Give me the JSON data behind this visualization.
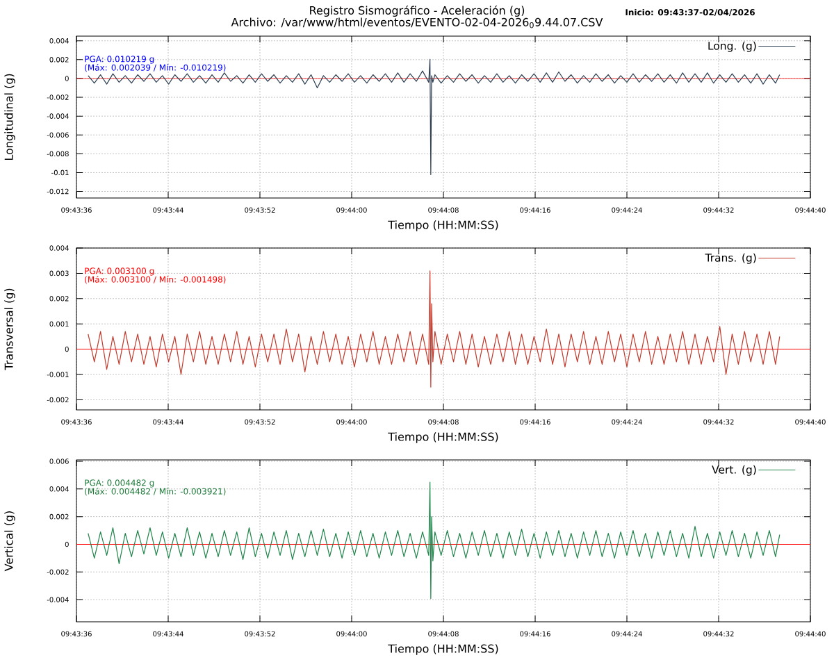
{
  "chart_data": [
    {
      "type": "line",
      "title": "Registro Sismográfico - Aceleración (g)",
      "subtitle": "Archivo: /var/www/html/eventos/EVENTO-02-04-2026$_{0}$9.44.07.CSV",
      "xlabel": "Tiempo (HH:MM:SS)",
      "ylabel": "Longitudinal (g)",
      "x": [
        9.72695,
        9.7271,
        9.72725,
        9.7274,
        9.72755,
        9.7277,
        9.72785,
        9.728,
        9.72815,
        9.7283,
        9.72845,
        9.7286,
        9.72875,
        9.7289,
        9.72905,
        9.7292,
        9.72935,
        9.7295,
        9.72965,
        9.7298,
        9.72995,
        9.7301,
        9.73025,
        9.7304,
        9.73055,
        9.7307,
        9.73085,
        9.731,
        9.73115,
        9.7313,
        9.73145,
        9.7316,
        9.73175,
        9.7319,
        9.73205,
        9.7322,
        9.73235,
        9.7325,
        9.73265,
        9.7328,
        9.73295,
        9.7331,
        9.73325,
        9.7334,
        9.73355,
        9.7337,
        9.73385,
        9.734,
        9.73415,
        9.7343,
        9.73445,
        9.7346,
        9.73475,
        9.7349,
        9.73505,
        9.7352,
        9.73523,
        9.73525,
        9.73527,
        9.7353,
        9.73535,
        9.7355,
        9.73565,
        9.7358,
        9.73595,
        9.7361,
        9.73625,
        9.7364,
        9.73655,
        9.7367,
        9.73685,
        9.737,
        9.73715,
        9.7373,
        9.73745,
        9.7376,
        9.73775,
        9.7379,
        9.73805,
        9.7382,
        9.73835,
        9.7385,
        9.73865,
        9.7388,
        9.73895,
        9.7391,
        9.73925,
        9.7394,
        9.73955,
        9.7397,
        9.73985,
        9.74,
        9.74015,
        9.7403,
        9.74045,
        9.7406,
        9.74075,
        9.7409,
        9.74105,
        9.7412,
        9.74135,
        9.7415,
        9.74165,
        9.7418,
        9.74195,
        9.7421,
        9.74225,
        9.7424,
        9.74255,
        9.7427,
        9.74285,
        9.743,
        9.74315,
        9.7433,
        9.74345,
        9.7436,
        9.7437
      ],
      "xlim": [
        9.726667,
        9.744444
      ],
      "xticks": [
        {
          "value": 9.726667,
          "label": "09:43:36"
        },
        {
          "value": 9.728889,
          "label": "09:43:44"
        },
        {
          "value": 9.731111,
          "label": "09:43:52"
        },
        {
          "value": 9.733333,
          "label": "09:44:00"
        },
        {
          "value": 9.735556,
          "label": "09:44:08"
        },
        {
          "value": 9.737778,
          "label": "09:44:16"
        },
        {
          "value": 9.74,
          "label": "09:44:24"
        },
        {
          "value": 9.742222,
          "label": "09:44:32"
        },
        {
          "value": 9.744444,
          "label": "09:44:40"
        }
      ],
      "ylim": [
        -0.0127,
        0.0045
      ],
      "yticks": [
        -0.012,
        -0.01,
        -0.008,
        -0.006,
        -0.004,
        -0.002,
        0,
        0.002,
        0.004
      ],
      "series": [
        {
          "name": "Long. (g)",
          "color": "#2c3e50",
          "values": [
            0.0003,
            -0.0005,
            0.0004,
            -0.0006,
            0.0005,
            -0.0004,
            0.0003,
            -0.0005,
            0.0004,
            -0.0003,
            0.0005,
            -0.0004,
            0.0003,
            -0.0006,
            0.0004,
            -0.0003,
            0.0005,
            -0.0004,
            0.0003,
            -0.0005,
            0.0004,
            -0.0004,
            0.0006,
            -0.0003,
            0.0003,
            -0.0005,
            0.0004,
            -0.0004,
            0.0005,
            -0.0003,
            0.0004,
            -0.0005,
            0.0003,
            -0.0004,
            0.0005,
            -0.0006,
            0.0004,
            -0.001,
            0.0003,
            -0.0004,
            0.0004,
            -0.0003,
            0.0005,
            -0.0004,
            0.0003,
            -0.0005,
            0.0004,
            -0.0003,
            0.0005,
            -0.0004,
            0.0006,
            -0.0004,
            0.0005,
            -0.0003,
            0.0008,
            -0.0004,
            0.002039,
            -0.010219,
            0.0003,
            -0.0004,
            0.0004,
            -0.0005,
            0.0003,
            -0.0004,
            0.0005,
            -0.0003,
            0.0004,
            -0.0005,
            0.0003,
            -0.0004,
            0.0005,
            -0.0004,
            0.0003,
            -0.0005,
            0.0004,
            -0.0003,
            0.0005,
            -0.0004,
            0.0006,
            -0.0004,
            0.0007,
            -0.0003,
            0.0004,
            -0.0005,
            0.0003,
            -0.0004,
            0.0005,
            -0.0003,
            0.0004,
            -0.0005,
            0.0003,
            -0.0004,
            0.0005,
            -0.0004,
            0.0004,
            -0.0003,
            0.0005,
            -0.0004,
            0.0004,
            -0.0005,
            0.0006,
            -0.0004,
            0.0005,
            -0.0004,
            0.0006,
            -0.0005,
            0.0004,
            -0.0004,
            0.0005,
            -0.0004,
            0.0004,
            -0.0005,
            0.0005,
            -0.0006,
            0.0004,
            -0.0005,
            0.0004
          ]
        }
      ],
      "ref_lines": [
        {
          "axis": "y",
          "value": 0,
          "color": "#ff0000"
        }
      ],
      "annotations": [
        "PGA: 0.010219 g",
        "(Máx: 0.002039 / Mín: -0.010219)",
        "Inicio: 09:43:37-02/04/2026"
      ],
      "grid": true,
      "legend": "top right"
    },
    {
      "type": "line",
      "xlabel": "Tiempo (HH:MM:SS)",
      "ylabel": "Transversal (g)",
      "x": [
        9.72695,
        9.7271,
        9.72725,
        9.7274,
        9.72755,
        9.7277,
        9.72785,
        9.728,
        9.72815,
        9.7283,
        9.72845,
        9.7286,
        9.72875,
        9.7289,
        9.72905,
        9.7292,
        9.72935,
        9.7295,
        9.72965,
        9.7298,
        9.72995,
        9.7301,
        9.73025,
        9.7304,
        9.73055,
        9.7307,
        9.73085,
        9.731,
        9.73115,
        9.7313,
        9.73145,
        9.7316,
        9.73175,
        9.7319,
        9.73205,
        9.7322,
        9.73235,
        9.7325,
        9.73265,
        9.7328,
        9.73295,
        9.7331,
        9.73325,
        9.7334,
        9.73355,
        9.7337,
        9.73385,
        9.734,
        9.73415,
        9.7343,
        9.73445,
        9.7346,
        9.73475,
        9.7349,
        9.73505,
        9.7352,
        9.73523,
        9.73525,
        9.73527,
        9.7353,
        9.73535,
        9.7355,
        9.73565,
        9.7358,
        9.73595,
        9.7361,
        9.73625,
        9.7364,
        9.73655,
        9.7367,
        9.73685,
        9.737,
        9.73715,
        9.7373,
        9.73745,
        9.7376,
        9.73775,
        9.7379,
        9.73805,
        9.7382,
        9.73835,
        9.7385,
        9.73865,
        9.7388,
        9.73895,
        9.7391,
        9.73925,
        9.7394,
        9.73955,
        9.7397,
        9.73985,
        9.74,
        9.74015,
        9.7403,
        9.74045,
        9.7406,
        9.74075,
        9.7409,
        9.74105,
        9.7412,
        9.74135,
        9.7415,
        9.74165,
        9.7418,
        9.74195,
        9.7421,
        9.74225,
        9.7424,
        9.74255,
        9.7427,
        9.74285,
        9.743,
        9.74315,
        9.7433,
        9.74345,
        9.7436,
        9.7437
      ],
      "xlim": [
        9.726667,
        9.744444
      ],
      "xticks": [
        {
          "value": 9.726667,
          "label": "09:43:36"
        },
        {
          "value": 9.728889,
          "label": "09:43:44"
        },
        {
          "value": 9.731111,
          "label": "09:43:52"
        },
        {
          "value": 9.733333,
          "label": "09:44:00"
        },
        {
          "value": 9.735556,
          "label": "09:44:08"
        },
        {
          "value": 9.737778,
          "label": "09:44:16"
        },
        {
          "value": 9.74,
          "label": "09:44:24"
        },
        {
          "value": 9.742222,
          "label": "09:44:32"
        },
        {
          "value": 9.744444,
          "label": "09:44:40"
        }
      ],
      "ylim": [
        -0.0024,
        0.004
      ],
      "yticks": [
        -0.002,
        -0.001,
        0,
        0.001,
        0.002,
        0.003,
        0.004
      ],
      "series": [
        {
          "name": "Trans. (g)",
          "color": "#c0392b",
          "values": [
            0.0006,
            -0.0005,
            0.0007,
            -0.0008,
            0.0005,
            -0.0006,
            0.0007,
            -0.0005,
            0.0006,
            -0.0006,
            0.0005,
            -0.0007,
            0.0006,
            -0.0005,
            0.0005,
            -0.001,
            0.0006,
            -0.0005,
            0.0007,
            -0.0006,
            0.0005,
            -0.0006,
            0.0006,
            -0.0005,
            0.0007,
            -0.0006,
            0.0005,
            -0.0007,
            0.0006,
            -0.0005,
            0.0006,
            -0.0006,
            0.0008,
            -0.0005,
            0.0006,
            -0.0009,
            0.0005,
            -0.0006,
            0.0007,
            -0.0005,
            0.0006,
            -0.0006,
            0.0005,
            -0.0007,
            0.0006,
            -0.0005,
            0.0007,
            -0.0006,
            0.0005,
            -0.0006,
            0.0006,
            -0.0005,
            0.0007,
            -0.0006,
            0.0006,
            -0.0006,
            0.0031,
            -0.001498,
            0.0018,
            -0.0005,
            0.0007,
            -0.0006,
            0.0006,
            -0.0005,
            0.0007,
            -0.0006,
            0.0006,
            -0.0007,
            0.0005,
            -0.0006,
            0.0006,
            -0.0005,
            0.0007,
            -0.0006,
            0.0006,
            -0.0006,
            0.0005,
            -0.0005,
            0.0008,
            -0.0006,
            0.0006,
            -0.0007,
            0.0006,
            -0.0005,
            0.0007,
            -0.0006,
            0.0005,
            -0.0006,
            0.0007,
            -0.0005,
            0.0006,
            -0.0007,
            0.0006,
            -0.0005,
            0.0007,
            -0.0006,
            0.0005,
            -0.0006,
            0.0006,
            -0.0005,
            0.0007,
            -0.0006,
            0.0006,
            -0.0006,
            0.0005,
            -0.0005,
            0.0009,
            -0.001,
            0.0006,
            -0.0006,
            0.0007,
            -0.0005,
            0.0006,
            -0.0006,
            0.0007,
            -0.0006,
            0.0005
          ]
        }
      ],
      "ref_lines": [
        {
          "axis": "y",
          "value": 0,
          "color": "#ff0000"
        }
      ],
      "annotations": [
        "PGA: 0.003100 g",
        "(Máx: 0.003100 / Mín: -0.001498)"
      ],
      "grid": true,
      "legend": "top right"
    },
    {
      "type": "line",
      "xlabel": "Tiempo (HH:MM:SS)",
      "ylabel": "Vertical (g)",
      "x": [
        9.72695,
        9.7271,
        9.72725,
        9.7274,
        9.72755,
        9.7277,
        9.72785,
        9.728,
        9.72815,
        9.7283,
        9.72845,
        9.7286,
        9.72875,
        9.7289,
        9.72905,
        9.7292,
        9.72935,
        9.7295,
        9.72965,
        9.7298,
        9.72995,
        9.7301,
        9.73025,
        9.7304,
        9.73055,
        9.7307,
        9.73085,
        9.731,
        9.73115,
        9.7313,
        9.73145,
        9.7316,
        9.73175,
        9.7319,
        9.73205,
        9.7322,
        9.73235,
        9.7325,
        9.73265,
        9.7328,
        9.73295,
        9.7331,
        9.73325,
        9.7334,
        9.73355,
        9.7337,
        9.73385,
        9.734,
        9.73415,
        9.7343,
        9.73445,
        9.7346,
        9.73475,
        9.7349,
        9.73505,
        9.7352,
        9.73523,
        9.73525,
        9.73527,
        9.7353,
        9.73535,
        9.7355,
        9.73565,
        9.7358,
        9.73595,
        9.7361,
        9.73625,
        9.7364,
        9.73655,
        9.7367,
        9.73685,
        9.737,
        9.73715,
        9.7373,
        9.73745,
        9.7376,
        9.73775,
        9.7379,
        9.73805,
        9.7382,
        9.73835,
        9.7385,
        9.73865,
        9.7388,
        9.73895,
        9.7391,
        9.73925,
        9.7394,
        9.73955,
        9.7397,
        9.73985,
        9.74,
        9.74015,
        9.7403,
        9.74045,
        9.7406,
        9.74075,
        9.7409,
        9.74105,
        9.7412,
        9.74135,
        9.7415,
        9.74165,
        9.7418,
        9.74195,
        9.7421,
        9.74225,
        9.7424,
        9.74255,
        9.7427,
        9.74285,
        9.743,
        9.74315,
        9.7433,
        9.74345,
        9.7436,
        9.7437
      ],
      "xlim": [
        9.726667,
        9.744444
      ],
      "xticks": [
        {
          "value": 9.726667,
          "label": "09:43:36"
        },
        {
          "value": 9.728889,
          "label": "09:43:44"
        },
        {
          "value": 9.731111,
          "label": "09:43:52"
        },
        {
          "value": 9.733333,
          "label": "09:44:00"
        },
        {
          "value": 9.735556,
          "label": "09:44:08"
        },
        {
          "value": 9.737778,
          "label": "09:44:16"
        },
        {
          "value": 9.74,
          "label": "09:44:24"
        },
        {
          "value": 9.742222,
          "label": "09:44:32"
        },
        {
          "value": 9.744444,
          "label": "09:44:40"
        }
      ],
      "ylim": [
        -0.0056,
        0.0061
      ],
      "yticks": [
        -0.004,
        -0.002,
        0,
        0.002,
        0.004,
        0.006
      ],
      "series": [
        {
          "name": "Vert. (g)",
          "color": "#1e8449",
          "values": [
            0.0008,
            -0.001,
            0.0009,
            -0.0008,
            0.0012,
            -0.0014,
            0.0008,
            -0.0009,
            0.001,
            -0.0007,
            0.0012,
            -0.0008,
            0.0009,
            -0.001,
            0.0008,
            -0.0009,
            0.0012,
            -0.0008,
            0.0009,
            -0.001,
            0.0008,
            -0.0009,
            0.001,
            -0.0008,
            0.0009,
            -0.0011,
            0.0012,
            -0.0009,
            0.0008,
            -0.001,
            0.0009,
            -0.0008,
            0.001,
            -0.0011,
            0.0008,
            -0.0009,
            0.001,
            -0.0008,
            0.0011,
            -0.0009,
            0.0008,
            -0.001,
            0.0009,
            -0.0008,
            0.001,
            -0.0009,
            0.0008,
            -0.001,
            0.0009,
            -0.0008,
            0.001,
            -0.0009,
            0.0008,
            -0.001,
            0.0009,
            -0.0008,
            0.004482,
            -0.003921,
            0.002,
            -0.0012,
            0.0009,
            -0.0008,
            0.001,
            -0.0009,
            0.0008,
            -0.001,
            0.0009,
            -0.0008,
            0.001,
            -0.0009,
            0.0008,
            -0.001,
            0.0009,
            -0.0008,
            0.0011,
            -0.0009,
            0.0008,
            -0.001,
            0.0009,
            -0.0008,
            0.001,
            -0.0009,
            0.0008,
            -0.001,
            0.0009,
            -0.0008,
            0.001,
            -0.0009,
            0.0008,
            -0.001,
            0.0009,
            -0.0008,
            0.001,
            -0.0009,
            0.0008,
            -0.001,
            0.0009,
            -0.0008,
            0.001,
            -0.0009,
            0.0008,
            -0.001,
            0.0013,
            -0.0009,
            0.0008,
            -0.001,
            0.0009,
            -0.0008,
            0.001,
            -0.0009,
            0.0008,
            -0.001,
            0.0009,
            -0.0008,
            0.001,
            -0.0009,
            0.0007
          ]
        }
      ],
      "ref_lines": [
        {
          "axis": "y",
          "value": 0,
          "color": "#ff0000"
        }
      ],
      "annotations": [
        "PGA: 0.004482 g",
        "(Máx: 0.004482 / Mín: -0.003921)"
      ],
      "grid": true,
      "legend": "top right"
    }
  ]
}
